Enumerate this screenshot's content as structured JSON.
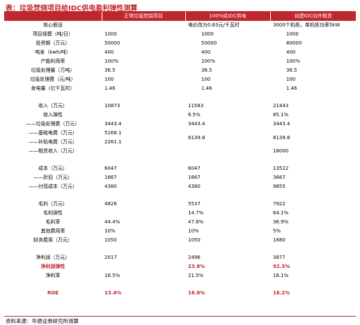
{
  "title": "表：垃圾焚烧项目给IDC供电盈利弹性测算",
  "headers": [
    "",
    "正常垃圾焚烧项目",
    "100%给IDC供电",
    "自建IDC向外租赁"
  ],
  "assumption_row": {
    "label": "核心假设",
    "c1": "",
    "c2": "电价改为0.63元/千瓦时",
    "c3": "3000个机柜，单机柜功率5kW"
  },
  "block1": [
    {
      "label": "项目规模（吨/日）",
      "c1": "1000",
      "c2": "1000",
      "c3": "1000"
    },
    {
      "label": "投资额（万元）",
      "c1": "50000",
      "c2": "50000",
      "c3": "80000"
    },
    {
      "label": "吨发（kwh/吨）",
      "c1": "400",
      "c2": "400",
      "c3": "400"
    },
    {
      "label": "产能利用率",
      "c1": "100%",
      "c2": "100%",
      "c3": "100%"
    },
    {
      "label": "垃圾处理量（万吨）",
      "c1": "36.5",
      "c2": "36.5",
      "c3": "36.5"
    },
    {
      "label": "垃圾处理费（元/吨）",
      "c1": "100",
      "c2": "100",
      "c3": "100"
    },
    {
      "label": "发电量（亿千瓦时）",
      "c1": "1.46",
      "c2": "1.46",
      "c3": "1.46"
    }
  ],
  "block2": {
    "revenue": {
      "label": "收入（万元）",
      "c1": "10873",
      "c2": "11583",
      "c3": "21443"
    },
    "revenue_elasticity": {
      "label": "收入弹性",
      "c1": "",
      "c2": "6.5%",
      "c3": "85.1%"
    },
    "waste_fee": {
      "label": "——垃圾处理费（万元）",
      "c1": "3443.4",
      "c2": "3443.4",
      "c3": "3443.4"
    },
    "basic_power": {
      "label": "——基础电费（万元）",
      "c1": "5168.1"
    },
    "subsidy_power": {
      "label": "——补贴电费（万元）",
      "c1": "2261.1"
    },
    "merged_power": {
      "c2": "8139.8",
      "c3": "8139.8"
    },
    "rent": {
      "label": "——租赁收入（万元）",
      "c1": "",
      "c2": "",
      "c3": "18000"
    }
  },
  "block3": [
    {
      "label": "成本（万元）",
      "c1": "6047",
      "c2": "6047",
      "c3": "13522",
      "dash": false
    },
    {
      "label": "——折旧（万元）",
      "c1": "1667",
      "c2": "1667",
      "c3": "3667",
      "dash": true
    },
    {
      "label": "——付现成本（万元）",
      "c1": "4380",
      "c2": "4380",
      "c3": "9855",
      "dash": true
    }
  ],
  "block4": [
    {
      "label": "毛利（万元）",
      "c1": "4826",
      "c2": "5537",
      "c3": "7922"
    },
    {
      "label": "毛利弹性",
      "c1": "",
      "c2": "14.7%",
      "c3": "64.1%"
    },
    {
      "label": "毛利率",
      "c1": "44.4%",
      "c2": "47.8%",
      "c3": "36.9%"
    },
    {
      "label": "其他费用率",
      "c1": "10%",
      "c2": "10%",
      "c3": "5%"
    },
    {
      "label": "财务费用（万元）",
      "c1": "1050",
      "c2": "1050",
      "c3": "1680"
    }
  ],
  "block5": [
    {
      "label": "净利润（万元）",
      "c1": "2017",
      "c2": "2496",
      "c3": "3877",
      "red": false
    },
    {
      "label": "净利润弹性",
      "c1": "",
      "c2": "23.8%",
      "c3": "92.3%",
      "red": true
    },
    {
      "label": "净利率",
      "c1": "18.5%",
      "c2": "21.5%",
      "c3": "18.1%",
      "red": false
    }
  ],
  "roe": {
    "label": "ROE",
    "c1": "13.4%",
    "c2": "16.6%",
    "c3": "16.2%"
  },
  "source": "资料来源：华源证券研究所测算",
  "colors": {
    "accent": "#c0262d"
  }
}
